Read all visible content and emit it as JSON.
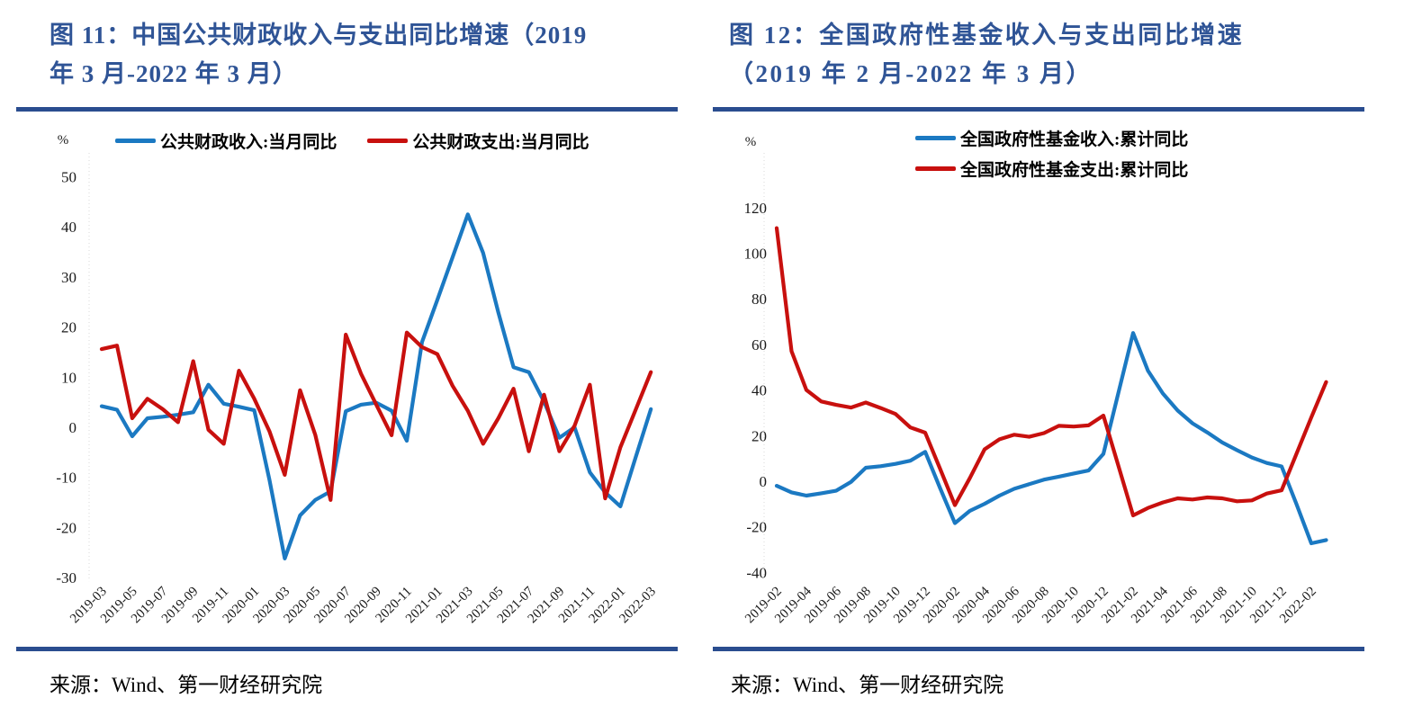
{
  "page": {
    "background": "#ffffff",
    "accent_color": "#2F5496",
    "divider_color": "#2A4D8F"
  },
  "figures": [
    {
      "title_lines": [
        "图 11：中国公共财政收入与支出同比增速（2019",
        "年 3 月-2022 年 3 月）"
      ],
      "source": "来源：Wind、第一财经研究院",
      "chart_data": {
        "type": "line",
        "title": "中国公共财政收入与支出同比增速（2019年3月-2022年3月）",
        "xlabel": "",
        "ylabel": "%",
        "unit": "%",
        "grid": false,
        "legend_position": "top",
        "ylim": [
          -30,
          50
        ],
        "ytick_step": 10,
        "x": [
          "2019-03",
          "2019-04",
          "2019-05",
          "2019-06",
          "2019-07",
          "2019-08",
          "2019-09",
          "2019-10",
          "2019-11",
          "2019-12",
          "2020-01",
          "2020-02",
          "2020-03",
          "2020-04",
          "2020-05",
          "2020-06",
          "2020-07",
          "2020-08",
          "2020-09",
          "2020-10",
          "2020-11",
          "2020-12",
          "2021-01",
          "2021-02",
          "2021-03",
          "2021-04",
          "2021-05",
          "2021-06",
          "2021-07",
          "2021-08",
          "2021-09",
          "2021-10",
          "2021-11",
          "2021-12",
          "2022-01",
          "2022-02",
          "2022-03"
        ],
        "xtick_every": 2,
        "series": [
          {
            "name": "公共财政收入:当月同比",
            "color": "#1B79C2",
            "values": [
              4.2,
              3.5,
              -1.8,
              1.8,
              2.1,
              2.5,
              3.0,
              8.5,
              4.7,
              4.1,
              3.4,
              -10.5,
              -26.2,
              -17.6,
              -14.5,
              -12.8,
              3.2,
              4.5,
              4.9,
              3.3,
              -2.7,
              17.0,
              25.4,
              33.9,
              42.5,
              34.8,
              22.9,
              12.0,
              11.0,
              5.1,
              -2.1,
              0.0,
              -9.0,
              -13.0,
              -15.8,
              -6.0,
              3.6
            ]
          },
          {
            "name": "公共财政支出:当月同比",
            "color": "#C8100E",
            "values": [
              15.6,
              16.3,
              1.8,
              5.7,
              3.6,
              1.0,
              13.2,
              -0.5,
              -3.3,
              11.3,
              5.7,
              -0.8,
              -9.5,
              7.4,
              -1.5,
              -14.5,
              18.5,
              10.7,
              4.5,
              -1.6,
              18.9,
              16.0,
              14.6,
              8.3,
              3.3,
              -3.3,
              1.8,
              7.7,
              -4.8,
              6.5,
              -4.8,
              0.3,
              8.5,
              -14.2,
              -4.0,
              3.5,
              11.0
            ]
          }
        ]
      }
    },
    {
      "title_lines": [
        "图 12：全国政府性基金收入与支出同比增速",
        "（2019 年 2 月-2022 年 3 月）"
      ],
      "source": "来源：Wind、第一财经研究院",
      "chart_data": {
        "type": "line",
        "title": "全国政府性基金收入与支出同比增速（2019年2月-2022年3月）",
        "xlabel": "",
        "ylabel": "%",
        "unit": "%",
        "grid": false,
        "legend_position": "top",
        "ylim": [
          -40,
          120
        ],
        "ytick_step": 20,
        "x": [
          "2019-02",
          "2019-03",
          "2019-04",
          "2019-05",
          "2019-06",
          "2019-07",
          "2019-08",
          "2019-09",
          "2019-10",
          "2019-11",
          "2019-12",
          "2020-01",
          "2020-02",
          "2020-03",
          "2020-04",
          "2020-05",
          "2020-06",
          "2020-07",
          "2020-08",
          "2020-09",
          "2020-10",
          "2020-11",
          "2020-12",
          "2021-01",
          "2021-02",
          "2021-03",
          "2021-04",
          "2021-05",
          "2021-06",
          "2021-07",
          "2021-08",
          "2021-09",
          "2021-10",
          "2021-11",
          "2021-12",
          "2022-01",
          "2022-02",
          "2022-03"
        ],
        "xtick_every": 2,
        "series": [
          {
            "name": "全国政府性基金收入:累计同比",
            "color": "#1B79C2",
            "values": [
              -2.0,
              -4.9,
              -6.3,
              -5.3,
              -4.2,
              -0.3,
              5.9,
              6.6,
              7.6,
              9.0,
              12.9,
              -3.0,
              -18.4,
              -13.0,
              -9.9,
              -6.3,
              -3.3,
              -1.3,
              0.7,
              2.0,
              3.4,
              4.7,
              12.0,
              38.5,
              65.0,
              48.5,
              38.5,
              31.0,
              25.4,
              21.4,
              17.0,
              13.6,
              10.4,
              8.0,
              6.5,
              -10.0,
              -27.2,
              -25.8
            ]
          },
          {
            "name": "全国政府性基金支出:累计同比",
            "color": "#C8100E",
            "values": [
              111.0,
              57.0,
              40.0,
              35.0,
              33.5,
              32.3,
              34.5,
              32.1,
              29.5,
              23.6,
              21.3,
              5.5,
              -10.5,
              1.3,
              14.0,
              18.4,
              20.4,
              19.5,
              21.1,
              24.3,
              24.0,
              24.5,
              28.8,
              7.0,
              -15.0,
              -11.7,
              -9.3,
              -7.5,
              -8.0,
              -7.1,
              -7.5,
              -8.8,
              -8.4,
              -5.4,
              -4.0,
              12.0,
              28.0,
              43.5
            ]
          }
        ]
      }
    }
  ]
}
